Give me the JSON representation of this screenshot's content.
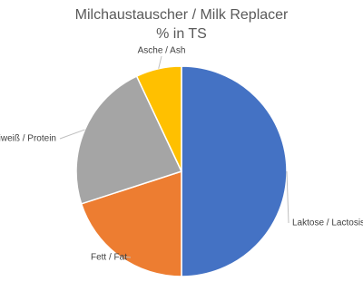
{
  "chart_data": {
    "type": "pie",
    "title": "Milchaustauscher / Milk Replacer",
    "subtitle": "% in TS",
    "categories": [
      "Laktose / Lactosis",
      "Fett / Fat",
      "Eiweiß / Protein",
      "Asche / Ash"
    ],
    "values": [
      50,
      20,
      23,
      7
    ],
    "colors": [
      "#4472c4",
      "#ed7d31",
      "#a5a5a5",
      "#ffc000"
    ]
  }
}
